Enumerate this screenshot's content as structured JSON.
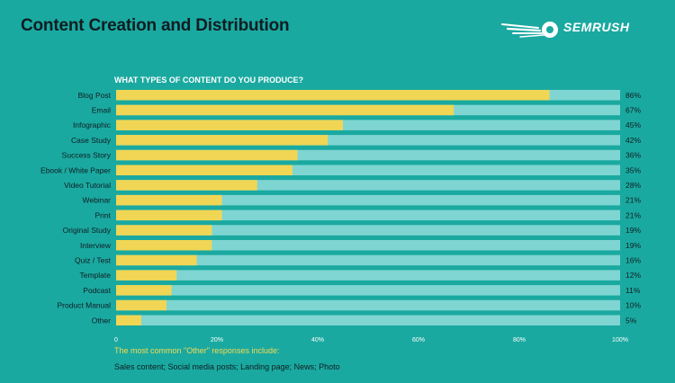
{
  "header": {
    "title": "Content Creation and Distribution",
    "brand": "SEMRUSH"
  },
  "colors": {
    "background": "#1aa9a0",
    "bar_value": "#f0d654",
    "bar_track": "#7fd5d2",
    "text_dark": "#0f1d22",
    "note_highlight": "#f3da53"
  },
  "chart_data": {
    "type": "bar",
    "orientation": "horizontal",
    "title": "WHAT TYPES OF CONTENT DO YOU PRODUCE?",
    "categories": [
      "Blog Post",
      "Email",
      "Infographic",
      "Case Study",
      "Success Story",
      "Ebook / White Paper",
      "Video Tutorial",
      "Webinar",
      "Print",
      "Original Study",
      "Interview",
      "Quiz / Test",
      "Template",
      "Podcast",
      "Product Manual",
      "Other"
    ],
    "values": [
      86,
      67,
      45,
      42,
      36,
      35,
      28,
      21,
      21,
      19,
      19,
      16,
      12,
      11,
      10,
      5
    ],
    "value_labels": [
      "86%",
      "67%",
      "45%",
      "42%",
      "36%",
      "35%",
      "28%",
      "21%",
      "21%",
      "19%",
      "19%",
      "16%",
      "12%",
      "11%",
      "10%",
      "5%"
    ],
    "xlim": [
      0,
      100
    ],
    "xticks": [
      0,
      20,
      40,
      60,
      80,
      100
    ],
    "xtick_labels": [
      "0",
      "20%",
      "40%",
      "60%",
      "80%",
      "100%"
    ],
    "grid": false,
    "xlabel": "",
    "ylabel": ""
  },
  "note": {
    "title": "The most common \"Other\" responses include:",
    "body": "Sales content; Social media posts; Landing page; News; Photo"
  }
}
